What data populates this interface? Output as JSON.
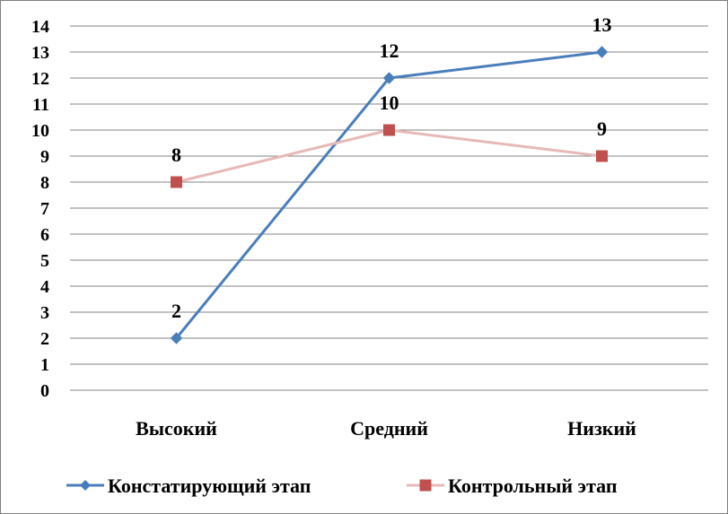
{
  "chart_data": {
    "type": "line",
    "title": "",
    "xlabel": "",
    "ylabel": "",
    "categories": [
      "Высокий",
      "Средний",
      "Низкий"
    ],
    "ylim": [
      0,
      14
    ],
    "yticks": [
      0,
      1,
      2,
      3,
      4,
      5,
      6,
      7,
      8,
      9,
      10,
      11,
      12,
      13,
      14
    ],
    "grid": true,
    "legend_position": "bottom",
    "series": [
      {
        "name": "Констатирующий этап",
        "values": [
          2,
          12,
          13
        ],
        "labels": [
          "2",
          "12",
          "13"
        ],
        "color": "#4a7ebb",
        "marker": "diamond"
      },
      {
        "name": "Контрольный этап",
        "values": [
          8,
          10,
          9
        ],
        "labels": [
          "8",
          "10",
          "9"
        ],
        "color": "#e6b9b8",
        "marker_color": "#c0504d",
        "marker": "square"
      }
    ]
  }
}
